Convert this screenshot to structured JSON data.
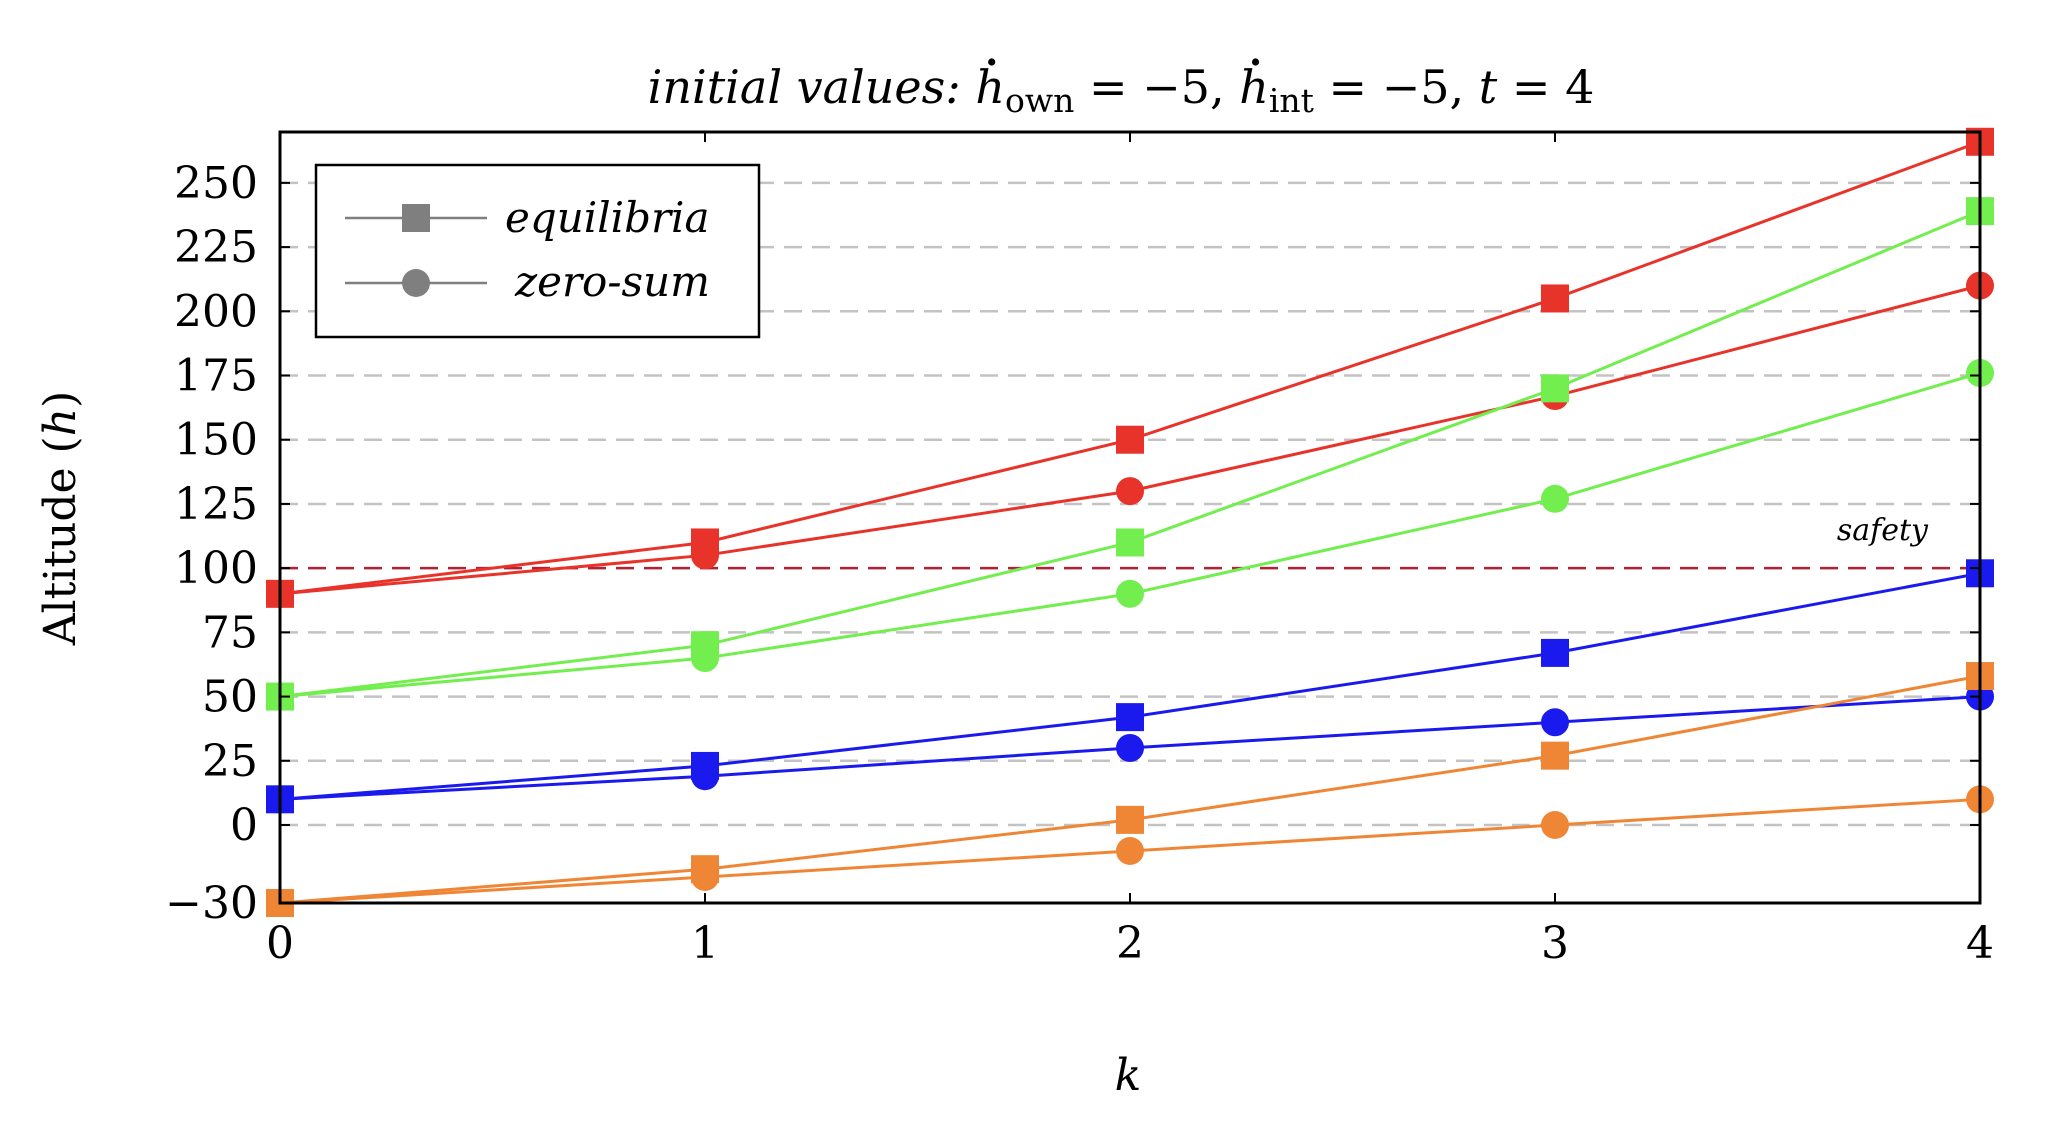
{
  "chart_data": {
    "type": "line",
    "title": {
      "prefix": "initial values: ",
      "var1": "h",
      "sub1": "own",
      "eq1": " = −5, ",
      "var2": "h",
      "sub2": "int",
      "eq2": " = −5, ",
      "var3": "t",
      "eq3": " = 4"
    },
    "xlabel": "k",
    "ylabel": {
      "text": "Altitude (",
      "var": "h",
      "close": ")"
    },
    "x_ticks": [
      0,
      1,
      2,
      3,
      4
    ],
    "x_tick_labels": [
      "0",
      "1",
      "2",
      "3",
      "4"
    ],
    "y_ticks": [
      -30,
      0,
      25,
      50,
      75,
      100,
      125,
      150,
      175,
      200,
      225,
      250
    ],
    "y_tick_labels": [
      "−30",
      "0",
      "25",
      "50",
      "75",
      "100",
      "125",
      "150",
      "175",
      "200",
      "225",
      "250"
    ],
    "xlim": [
      0,
      4
    ],
    "ylim": [
      -30,
      270
    ],
    "grid": "horizontal dashed",
    "safety_line": {
      "y": 100,
      "label": "safety",
      "color": "#b22234"
    },
    "legend": {
      "placement": "top-left",
      "entries": [
        {
          "label": "equilibria",
          "marker": "square"
        },
        {
          "label": "zero-sum",
          "marker": "circle"
        }
      ],
      "color": "#7f7f7f"
    },
    "x": [
      0,
      1,
      2,
      3,
      4
    ],
    "series": [
      {
        "color": "#e8332a",
        "marker": "square",
        "values": [
          90,
          110,
          150,
          205,
          266
        ]
      },
      {
        "color": "#e8332a",
        "marker": "circle",
        "values": [
          90,
          105,
          130,
          167,
          210
        ]
      },
      {
        "color": "#72ee4f",
        "marker": "square",
        "values": [
          50,
          70,
          110,
          170,
          239
        ]
      },
      {
        "color": "#72ee4f",
        "marker": "circle",
        "values": [
          50,
          65,
          90,
          127,
          176
        ]
      },
      {
        "color": "#1a1aee",
        "marker": "square",
        "values": [
          10,
          23,
          42,
          67,
          98
        ]
      },
      {
        "color": "#1a1aee",
        "marker": "circle",
        "values": [
          10,
          19,
          30,
          40,
          50
        ]
      },
      {
        "color": "#ef8636",
        "marker": "square",
        "values": [
          -30,
          -17,
          2,
          27,
          58
        ]
      },
      {
        "color": "#ef8636",
        "marker": "circle",
        "values": [
          -30,
          -20,
          -10,
          0,
          10
        ]
      }
    ]
  }
}
